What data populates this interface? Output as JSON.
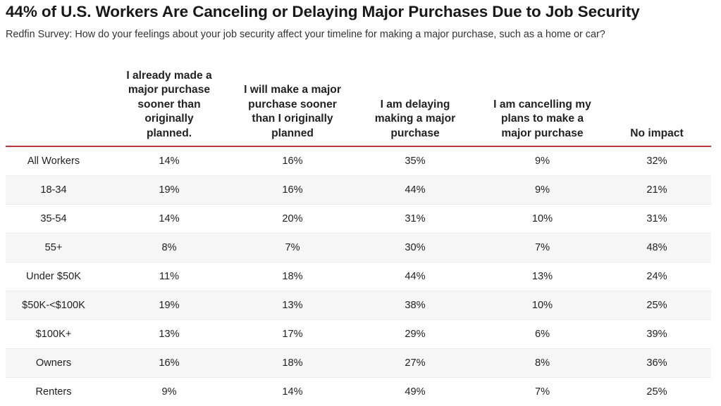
{
  "chart_data": {
    "type": "table",
    "title": "44% of U.S. Workers Are Canceling or Delaying Major Purchases Due to Job Security",
    "subtitle": "Redfin Survey: How do your feelings about your job security affect your timeline for making a major purchase, such as a home or car?",
    "columns": [
      "",
      "I already made a major purchase sooner than originally planned.",
      "I will make a major purchase sooner than I originally planned",
      "I am delaying making a major purchase",
      "I am cancelling my plans to make a major purchase",
      "No impact"
    ],
    "rows": [
      {
        "label": "All Workers",
        "values": [
          "14%",
          "16%",
          "35%",
          "9%",
          "32%"
        ]
      },
      {
        "label": "18-34",
        "values": [
          "19%",
          "16%",
          "44%",
          "9%",
          "21%"
        ]
      },
      {
        "label": "35-54",
        "values": [
          "14%",
          "20%",
          "31%",
          "10%",
          "31%"
        ]
      },
      {
        "label": "55+",
        "values": [
          "8%",
          "7%",
          "30%",
          "7%",
          "48%"
        ]
      },
      {
        "label": "Under $50K",
        "values": [
          "11%",
          "18%",
          "44%",
          "13%",
          "24%"
        ]
      },
      {
        "label": "$50K-<$100K",
        "values": [
          "19%",
          "13%",
          "38%",
          "10%",
          "25%"
        ]
      },
      {
        "label": "$100K+",
        "values": [
          "13%",
          "17%",
          "29%",
          "6%",
          "39%"
        ]
      },
      {
        "label": "Owners",
        "values": [
          "16%",
          "18%",
          "27%",
          "8%",
          "36%"
        ]
      },
      {
        "label": "Renters",
        "values": [
          "9%",
          "14%",
          "49%",
          "7%",
          "25%"
        ]
      }
    ]
  },
  "colors": {
    "header_rule": "#b93a3a",
    "stripe": "#f6f6f6",
    "text": "#222222"
  }
}
